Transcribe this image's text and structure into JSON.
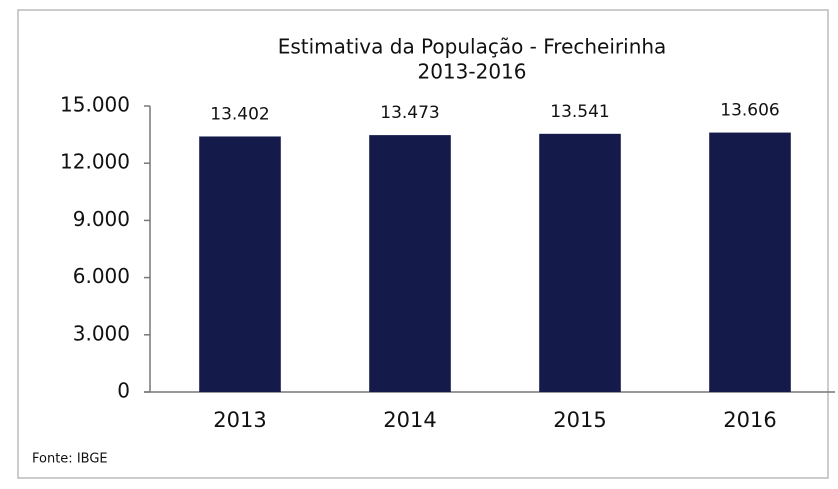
{
  "chart_data": {
    "type": "bar",
    "title": "Estimativa da População - Frecheirinha",
    "subtitle": "2013-2016",
    "categories": [
      "2013",
      "2014",
      "2015",
      "2016"
    ],
    "values": [
      13402,
      13473,
      13541,
      13606
    ],
    "value_labels": [
      "13.402",
      "13.473",
      "13.541",
      "13.606"
    ],
    "color": "#141a4a",
    "ylim": [
      0,
      15000
    ],
    "yticks": [
      0,
      {
        "value": 3000,
        "label": "3.000"
      },
      {
        "value": 6000,
        "label": "6.000"
      },
      {
        "value": 9000,
        "label": "9.000"
      },
      {
        "value": 12000,
        "label": "12.000"
      },
      {
        "value": 15000,
        "label": "15.000"
      }
    ],
    "grid": false,
    "source": "Fonte: IBGE"
  }
}
